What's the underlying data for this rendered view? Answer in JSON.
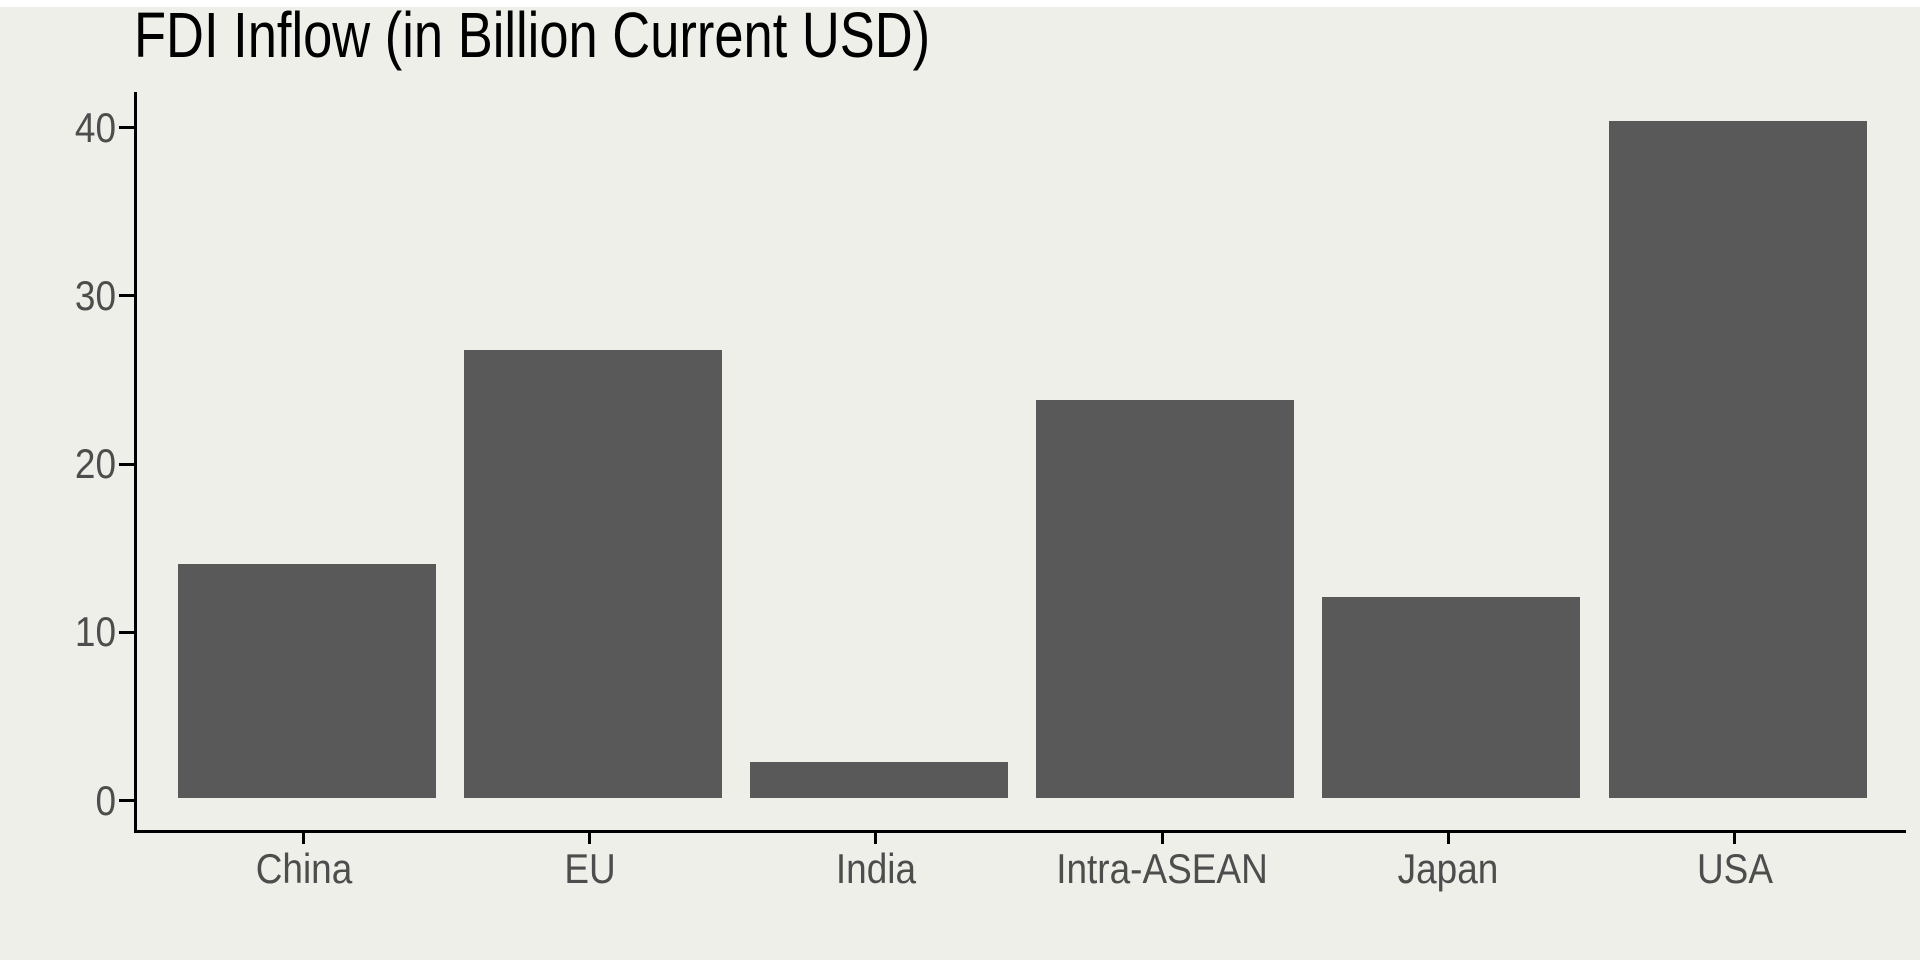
{
  "chart_data": {
    "type": "bar",
    "title": "FDI Inflow (in Billion Current USD)",
    "categories": [
      "China",
      "EU",
      "India",
      "Intra-ASEAN",
      "Japan",
      "USA"
    ],
    "values": [
      13.9,
      26.6,
      2.1,
      23.6,
      11.9,
      40.2
    ],
    "xlabel": "",
    "ylabel": "",
    "y_ticks": [
      0,
      10,
      20,
      30,
      40
    ],
    "ylim": [
      -1.9,
      42.1
    ],
    "grid": "off",
    "legend": "none",
    "colors": {
      "bar": "#595959",
      "background": "#EFEFE9",
      "axis": "#000000",
      "tick_label": "#4D4D4D",
      "title": "#000000"
    }
  }
}
